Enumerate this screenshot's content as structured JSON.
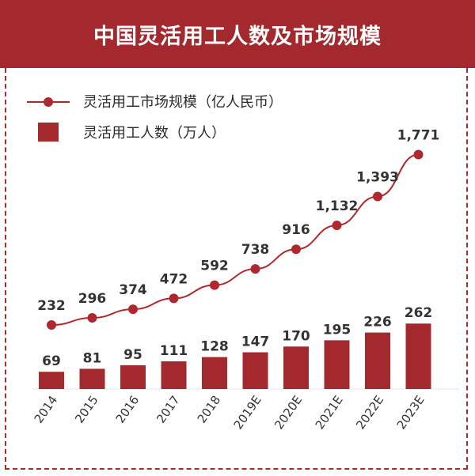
{
  "header": {
    "title": "中国灵活用工人数及市场规模"
  },
  "colors": {
    "accent": "#a4292e",
    "line": "#b0282f"
  },
  "chart_data": {
    "type": "bar",
    "categories": [
      "2014",
      "2015",
      "2016",
      "2017",
      "2018",
      "2019E",
      "2020E",
      "2021E",
      "2022E",
      "2023E"
    ],
    "series": [
      {
        "name": "灵活用工市场规模（亿人民币）",
        "type": "line",
        "values": [
          232,
          296,
          374,
          472,
          592,
          738,
          916,
          1132,
          1393,
          1771
        ],
        "labels": [
          "232",
          "296",
          "374",
          "472",
          "592",
          "738",
          "916",
          "1,132",
          "1,393",
          "1,771"
        ]
      },
      {
        "name": "灵活用工人数（万人）",
        "type": "bar",
        "values": [
          69,
          81,
          95,
          111,
          128,
          147,
          170,
          195,
          226,
          262
        ],
        "labels": [
          "69",
          "81",
          "95",
          "111",
          "128",
          "147",
          "170",
          "195",
          "226",
          "262"
        ]
      }
    ],
    "legend": "top-left",
    "grid": false
  }
}
